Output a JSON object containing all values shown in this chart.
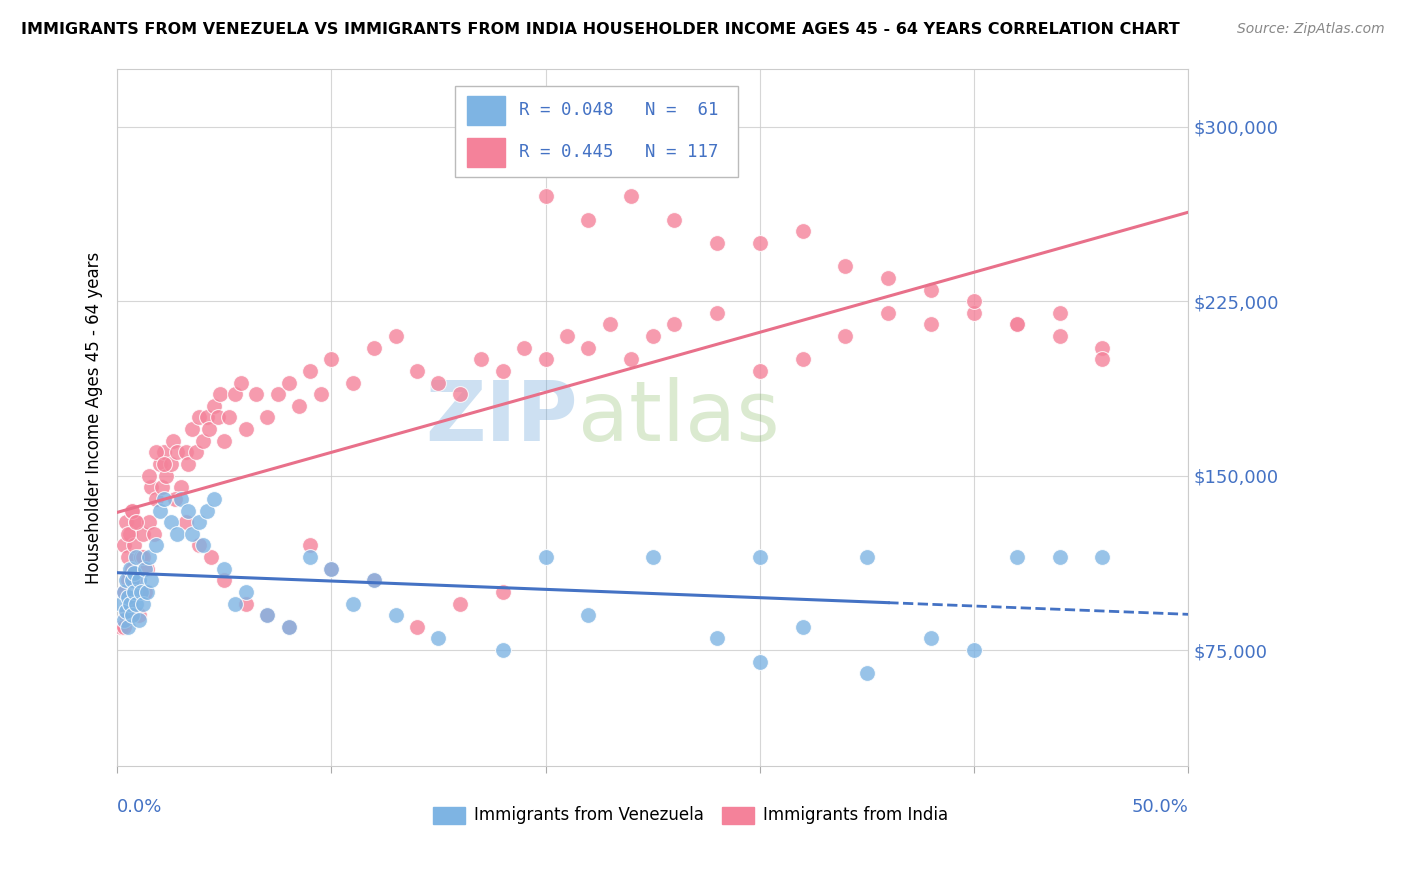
{
  "title": "IMMIGRANTS FROM VENEZUELA VS IMMIGRANTS FROM INDIA HOUSEHOLDER INCOME AGES 45 - 64 YEARS CORRELATION CHART",
  "source": "Source: ZipAtlas.com",
  "ylabel": "Householder Income Ages 45 - 64 years",
  "xlim": [
    0.0,
    0.5
  ],
  "ylim": [
    25000,
    325000
  ],
  "yticks": [
    75000,
    150000,
    225000,
    300000
  ],
  "ytick_labels": [
    "$75,000",
    "$150,000",
    "$225,000",
    "$300,000"
  ],
  "legend1_r": "R = 0.048",
  "legend1_n": "N =  61",
  "legend2_r": "R = 0.445",
  "legend2_n": "N = 117",
  "color_venezuela": "#7EB4E3",
  "color_india": "#F4829A",
  "color_blue": "#4472C4",
  "color_pink": "#E8708A",
  "watermark_zip": "ZIP",
  "watermark_atlas": "atlas",
  "ven_scatter_x": [
    0.002,
    0.003,
    0.003,
    0.004,
    0.004,
    0.005,
    0.005,
    0.006,
    0.006,
    0.007,
    0.007,
    0.008,
    0.008,
    0.009,
    0.009,
    0.01,
    0.01,
    0.011,
    0.012,
    0.013,
    0.014,
    0.015,
    0.016,
    0.018,
    0.02,
    0.022,
    0.025,
    0.028,
    0.03,
    0.033,
    0.035,
    0.038,
    0.04,
    0.042,
    0.045,
    0.05,
    0.055,
    0.06,
    0.07,
    0.08,
    0.09,
    0.1,
    0.11,
    0.12,
    0.13,
    0.15,
    0.18,
    0.2,
    0.22,
    0.25,
    0.28,
    0.3,
    0.32,
    0.35,
    0.38,
    0.4,
    0.42,
    0.44,
    0.46,
    0.35,
    0.3
  ],
  "ven_scatter_y": [
    95000,
    100000,
    88000,
    105000,
    92000,
    98000,
    85000,
    110000,
    95000,
    105000,
    90000,
    100000,
    108000,
    95000,
    115000,
    88000,
    105000,
    100000,
    95000,
    110000,
    100000,
    115000,
    105000,
    120000,
    135000,
    140000,
    130000,
    125000,
    140000,
    135000,
    125000,
    130000,
    120000,
    135000,
    140000,
    110000,
    95000,
    100000,
    90000,
    85000,
    115000,
    110000,
    95000,
    105000,
    90000,
    80000,
    75000,
    115000,
    90000,
    115000,
    80000,
    70000,
    85000,
    65000,
    80000,
    75000,
    115000,
    115000,
    115000,
    115000,
    115000
  ],
  "ind_scatter_x": [
    0.002,
    0.003,
    0.003,
    0.004,
    0.004,
    0.005,
    0.005,
    0.006,
    0.006,
    0.007,
    0.007,
    0.008,
    0.008,
    0.009,
    0.01,
    0.011,
    0.012,
    0.013,
    0.014,
    0.015,
    0.016,
    0.017,
    0.018,
    0.02,
    0.021,
    0.022,
    0.023,
    0.025,
    0.026,
    0.028,
    0.03,
    0.032,
    0.033,
    0.035,
    0.037,
    0.038,
    0.04,
    0.042,
    0.043,
    0.045,
    0.047,
    0.048,
    0.05,
    0.052,
    0.055,
    0.058,
    0.06,
    0.065,
    0.07,
    0.075,
    0.08,
    0.085,
    0.09,
    0.095,
    0.1,
    0.11,
    0.12,
    0.13,
    0.14,
    0.15,
    0.16,
    0.17,
    0.18,
    0.19,
    0.2,
    0.21,
    0.22,
    0.23,
    0.24,
    0.25,
    0.26,
    0.28,
    0.3,
    0.32,
    0.34,
    0.36,
    0.38,
    0.4,
    0.42,
    0.44,
    0.46,
    0.003,
    0.005,
    0.007,
    0.009,
    0.012,
    0.015,
    0.018,
    0.022,
    0.027,
    0.032,
    0.038,
    0.044,
    0.05,
    0.06,
    0.07,
    0.08,
    0.09,
    0.1,
    0.12,
    0.14,
    0.16,
    0.18,
    0.2,
    0.22,
    0.24,
    0.26,
    0.28,
    0.3,
    0.32,
    0.34,
    0.36,
    0.38,
    0.4,
    0.42,
    0.44,
    0.46
  ],
  "ind_scatter_y": [
    85000,
    100000,
    120000,
    90000,
    130000,
    105000,
    115000,
    125000,
    95000,
    135000,
    110000,
    105000,
    120000,
    130000,
    90000,
    115000,
    125000,
    100000,
    110000,
    130000,
    145000,
    125000,
    140000,
    155000,
    145000,
    160000,
    150000,
    155000,
    165000,
    160000,
    145000,
    160000,
    155000,
    170000,
    160000,
    175000,
    165000,
    175000,
    170000,
    180000,
    175000,
    185000,
    165000,
    175000,
    185000,
    190000,
    170000,
    185000,
    175000,
    185000,
    190000,
    180000,
    195000,
    185000,
    200000,
    190000,
    205000,
    210000,
    195000,
    190000,
    185000,
    200000,
    195000,
    205000,
    200000,
    210000,
    205000,
    215000,
    200000,
    210000,
    215000,
    220000,
    195000,
    200000,
    210000,
    220000,
    215000,
    220000,
    215000,
    220000,
    205000,
    85000,
    125000,
    135000,
    130000,
    115000,
    150000,
    160000,
    155000,
    140000,
    130000,
    120000,
    115000,
    105000,
    95000,
    90000,
    85000,
    120000,
    110000,
    105000,
    85000,
    95000,
    100000,
    270000,
    260000,
    270000,
    260000,
    250000,
    250000,
    255000,
    240000,
    235000,
    230000,
    225000,
    215000,
    210000,
    200000
  ]
}
